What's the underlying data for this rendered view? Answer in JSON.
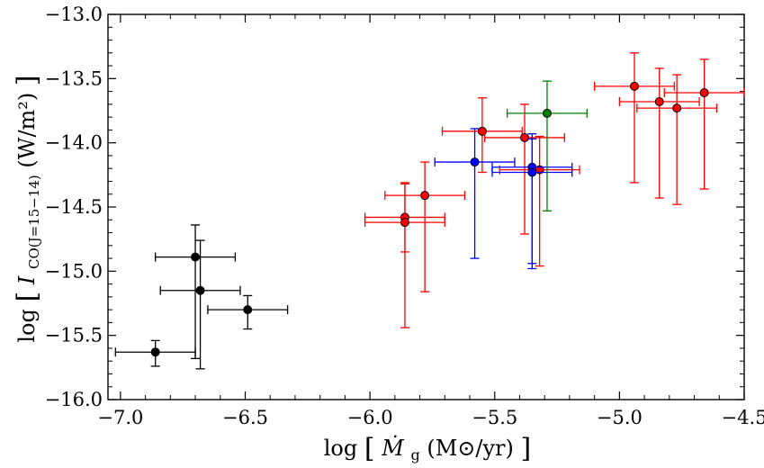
{
  "chart_data": {
    "type": "scatter",
    "title": "",
    "xlabel": "log [Ṁ_g (M_⊙/yr)]",
    "ylabel": "log [I_CO(J=15−14) (W/m²)]",
    "xlabel_parts": {
      "main": "log",
      "mdot": "Ṁ",
      "sub": "g",
      "unit": "(M⊙/yr)"
    },
    "ylabel_parts": {
      "main": "log",
      "i": "I",
      "sub": "CO(J=15−14)",
      "unit": "(W/m²)"
    },
    "xlim": [
      -7.05,
      -4.5
    ],
    "ylim": [
      -16.0,
      -13.0
    ],
    "xticks": [
      -7.0,
      -6.5,
      -6.0,
      -5.5,
      -5.0,
      -4.5
    ],
    "yticks": [
      -16.0,
      -15.5,
      -15.0,
      -14.5,
      -14.0,
      -13.5,
      -13.0
    ],
    "xtick_labels": [
      "−7.0",
      "−6.5",
      "−6.0",
      "−5.5",
      "−5.0",
      "−4.5"
    ],
    "ytick_labels": [
      "−16.0",
      "−15.5",
      "−15.0",
      "−14.5",
      "−14.0",
      "−13.5",
      "−13.0"
    ],
    "grid": false,
    "series": [
      {
        "name": "black",
        "color": "#000000",
        "points": [
          {
            "x": -6.86,
            "y": -15.63,
            "xerr": [
              0.16,
              0.16
            ],
            "yerr": [
              0.11,
              0.09
            ]
          },
          {
            "x": -6.7,
            "y": -14.89,
            "xerr": [
              0.16,
              0.16
            ],
            "yerr": [
              0.79,
              0.25
            ]
          },
          {
            "x": -6.68,
            "y": -15.15,
            "xerr": [
              0.16,
              0.16
            ],
            "yerr": [
              0.61,
              0.39
            ]
          },
          {
            "x": -6.49,
            "y": -15.3,
            "xerr": [
              0.16,
              0.16
            ],
            "yerr": [
              0.15,
              0.11
            ]
          }
        ]
      },
      {
        "name": "red",
        "color": "#ff0000",
        "points": [
          {
            "x": -5.86,
            "y": -14.58,
            "xerr": [
              0.16,
              0.16
            ],
            "yerr": [
              0.27,
              0.27
            ]
          },
          {
            "x": -5.86,
            "y": -14.62,
            "xerr": [
              0.16,
              0.16
            ],
            "yerr": [
              0.82,
              0.3
            ]
          },
          {
            "x": -5.78,
            "y": -14.41,
            "xerr": [
              0.16,
              0.16
            ],
            "yerr": [
              0.75,
              0.26
            ]
          },
          {
            "x": -5.55,
            "y": -13.91,
            "xerr": [
              0.16,
              0.16
            ],
            "yerr": [
              0.32,
              0.26
            ]
          },
          {
            "x": -5.38,
            "y": -13.96,
            "xerr": [
              0.16,
              0.16
            ],
            "yerr": [
              0.75,
              0.26
            ]
          },
          {
            "x": -5.32,
            "y": -14.21,
            "xerr": [
              0.16,
              0.16
            ],
            "yerr": [
              0.75,
              0.26
            ]
          },
          {
            "x": -4.94,
            "y": -13.56,
            "xerr": [
              0.16,
              0.16
            ],
            "yerr": [
              0.75,
              0.26
            ]
          },
          {
            "x": -4.84,
            "y": -13.68,
            "xerr": [
              0.16,
              0.16
            ],
            "yerr": [
              0.75,
              0.26
            ]
          },
          {
            "x": -4.77,
            "y": -13.73,
            "xerr": [
              0.16,
              0.16
            ],
            "yerr": [
              0.75,
              0.26
            ]
          },
          {
            "x": -4.66,
            "y": -13.61,
            "xerr": [
              0.16,
              0.16
            ],
            "yerr": [
              0.75,
              0.26
            ]
          }
        ]
      },
      {
        "name": "blue",
        "color": "#0000ff",
        "points": [
          {
            "x": -5.58,
            "y": -14.15,
            "xerr": [
              0.16,
              0.16
            ],
            "yerr": [
              0.75,
              0.26
            ]
          },
          {
            "x": -5.35,
            "y": -14.19,
            "xerr": [
              0.16,
              0.16
            ],
            "yerr": [
              0.75,
              0.26
            ]
          },
          {
            "x": -5.35,
            "y": -14.23,
            "xerr": [
              0.16,
              0.16
            ],
            "yerr": [
              0.75,
              0.26
            ]
          }
        ]
      },
      {
        "name": "green",
        "color": "#008000",
        "points": [
          {
            "x": -5.29,
            "y": -13.77,
            "xerr": [
              0.16,
              0.16
            ],
            "yerr": [
              0.76,
              0.25
            ]
          }
        ]
      }
    ]
  }
}
